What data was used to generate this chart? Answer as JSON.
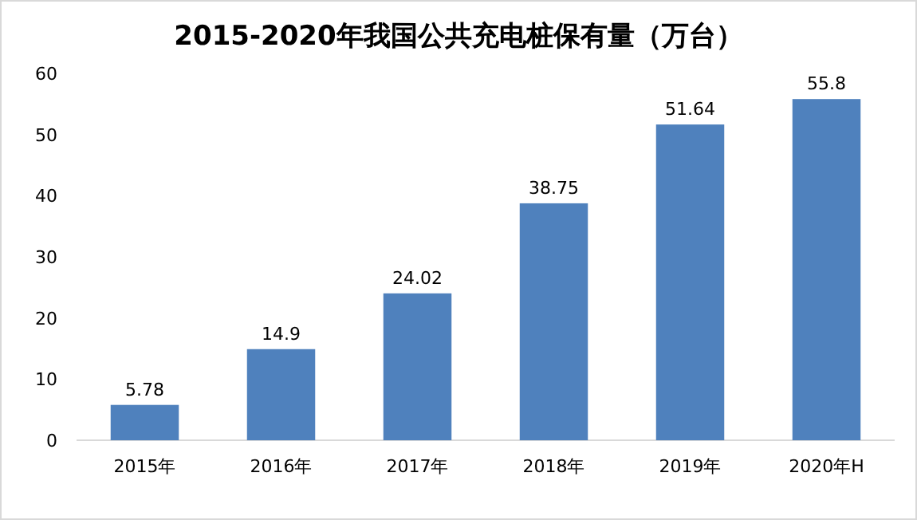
{
  "chart_data": {
    "type": "bar",
    "title": "2015-2020年我国公共充电桩保有量（万台）",
    "categories": [
      "2015年",
      "2016年",
      "2017年",
      "2018年",
      "2019年",
      "2020年H"
    ],
    "values": [
      5.78,
      14.9,
      24.02,
      38.75,
      51.64,
      55.8
    ],
    "color": "#4f81bd",
    "ylim": [
      0,
      60
    ],
    "yticks": [
      0,
      10,
      20,
      30,
      40,
      50,
      60
    ],
    "grid": false,
    "data_labels": true
  }
}
